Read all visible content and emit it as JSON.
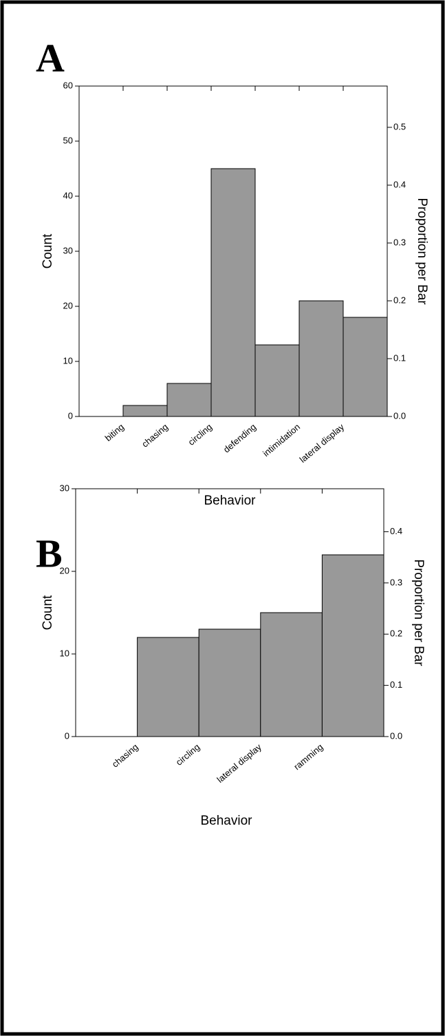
{
  "chart_data": [
    {
      "type": "histogram",
      "panel_label": "A",
      "xlabel": "Behavior",
      "ylabel": "Count",
      "y2label": "Proportion per Bar",
      "bins": [
        0,
        1,
        2,
        3,
        4,
        5,
        6,
        7
      ],
      "counts": [
        0,
        2,
        6,
        45,
        13,
        21,
        18
      ],
      "color": "#999999",
      "xlim": [
        0,
        7
      ],
      "xticks": [
        {
          "value": 1,
          "label": "biting"
        },
        {
          "value": 2,
          "label": "chasing"
        },
        {
          "value": 3,
          "label": "circling"
        },
        {
          "value": 4,
          "label": "defending"
        },
        {
          "value": 5,
          "label": "intimidation"
        },
        {
          "value": 6,
          "label": "lateral display"
        }
      ],
      "ylim": [
        0,
        60
      ],
      "yticks": [
        0,
        10,
        20,
        30,
        40,
        50,
        60
      ],
      "y2lim": [
        0,
        0.5714
      ],
      "y2ticks": [
        {
          "value": 0,
          "label": "0.0"
        },
        0.1,
        0.2,
        0.3,
        0.4,
        0.5
      ]
    },
    {
      "type": "histogram",
      "panel_label": "B",
      "xlabel": "Behavior",
      "ylabel": "Count",
      "y2label": "Proportion per Bar",
      "bins": [
        0,
        1,
        2,
        3,
        4,
        5
      ],
      "counts": [
        0,
        12,
        13,
        15,
        22
      ],
      "color": "#999999",
      "xlim": [
        0,
        5
      ],
      "xticks": [
        {
          "value": 1,
          "label": "chasing"
        },
        {
          "value": 2,
          "label": "circling"
        },
        {
          "value": 3,
          "label": "lateral display"
        },
        {
          "value": 4,
          "label": "ramming"
        }
      ],
      "ylim": [
        0,
        30
      ],
      "yticks": [
        0,
        10,
        20,
        30
      ],
      "y2lim": [
        0,
        0.4839
      ],
      "y2ticks": [
        {
          "value": 0,
          "label": "0.0"
        },
        0.1,
        0.2,
        0.3,
        0.4
      ]
    }
  ]
}
